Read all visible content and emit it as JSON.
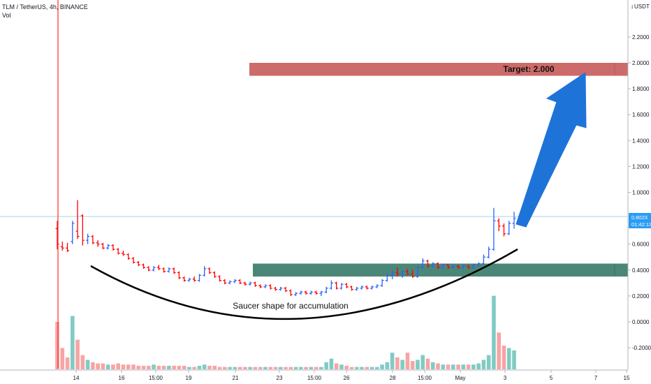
{
  "header": {
    "symbol_line": "TLM / TetherUS, 4h, BINANCE",
    "volume_label": "Vol"
  },
  "price_axis": {
    "currency": "USDT",
    "tick_labels": [
      "2.2000",
      "2.0000",
      "1.8000",
      "1.6000",
      "1.4000",
      "1.2000",
      "1.0000",
      "0.6000",
      "0.4000",
      "0.2000",
      "0.0000",
      "-0.2000"
    ],
    "last_price": "0.8023",
    "countdown": "01:42:13"
  },
  "time_axis": {
    "tick_labels": [
      "14",
      "16",
      "15:00",
      "19",
      "21",
      "23",
      "15:00",
      "26",
      "28",
      "15:00",
      "May",
      "3",
      "5",
      "7",
      "15"
    ]
  },
  "annotations": {
    "target_label": "Target: 2.000",
    "saucer_label": "Saucer shape for accumulation"
  },
  "colors": {
    "up": "#2962ff",
    "down": "#ff0000",
    "vol_up": "#80cbc4",
    "vol_down": "#f7a4a4",
    "target_zone": "#cd6a6a",
    "support_zone": "#4b8776",
    "arrow": "#1e73d8",
    "last_price_line": "#a8d4ef",
    "last_price_label": "#2a9df4"
  },
  "chart_data": {
    "type": "candlestick",
    "title": "TLM / TetherUS, 4h, BINANCE",
    "y_unit": "USDT",
    "price_range": [
      -0.2,
      2.2
    ],
    "last_price": 0.8023,
    "ohlc": [
      [
        0.72,
        0.78,
        0.56,
        0.6
      ],
      [
        0.58,
        0.62,
        0.55,
        0.57
      ],
      [
        0.57,
        0.61,
        0.54,
        0.55
      ],
      [
        0.62,
        0.78,
        0.6,
        0.76
      ],
      [
        0.7,
        0.94,
        0.64,
        0.66
      ],
      [
        0.82,
        0.83,
        0.59,
        0.63
      ],
      [
        0.63,
        0.68,
        0.6,
        0.66
      ],
      [
        0.66,
        0.67,
        0.6,
        0.61
      ],
      [
        0.61,
        0.63,
        0.58,
        0.6
      ],
      [
        0.6,
        0.61,
        0.56,
        0.57
      ],
      [
        0.57,
        0.6,
        0.56,
        0.59
      ],
      [
        0.59,
        0.6,
        0.55,
        0.56
      ],
      [
        0.56,
        0.57,
        0.52,
        0.53
      ],
      [
        0.53,
        0.55,
        0.51,
        0.52
      ],
      [
        0.52,
        0.53,
        0.48,
        0.49
      ],
      [
        0.49,
        0.5,
        0.45,
        0.46
      ],
      [
        0.46,
        0.47,
        0.43,
        0.44
      ],
      [
        0.44,
        0.45,
        0.41,
        0.42
      ],
      [
        0.42,
        0.43,
        0.39,
        0.4
      ],
      [
        0.4,
        0.43,
        0.39,
        0.42
      ],
      [
        0.42,
        0.44,
        0.4,
        0.41
      ],
      [
        0.41,
        0.42,
        0.38,
        0.39
      ],
      [
        0.39,
        0.42,
        0.38,
        0.41
      ],
      [
        0.41,
        0.42,
        0.37,
        0.38
      ],
      [
        0.38,
        0.39,
        0.33,
        0.34
      ],
      [
        0.34,
        0.35,
        0.31,
        0.32
      ],
      [
        0.32,
        0.34,
        0.31,
        0.33
      ],
      [
        0.33,
        0.35,
        0.31,
        0.32
      ],
      [
        0.32,
        0.37,
        0.31,
        0.36
      ],
      [
        0.36,
        0.43,
        0.35,
        0.41
      ],
      [
        0.41,
        0.42,
        0.37,
        0.38
      ],
      [
        0.38,
        0.39,
        0.34,
        0.35
      ],
      [
        0.35,
        0.36,
        0.31,
        0.32
      ],
      [
        0.32,
        0.33,
        0.29,
        0.3
      ],
      [
        0.3,
        0.32,
        0.29,
        0.31
      ],
      [
        0.31,
        0.33,
        0.3,
        0.32
      ],
      [
        0.32,
        0.33,
        0.29,
        0.3
      ],
      [
        0.3,
        0.31,
        0.28,
        0.29
      ],
      [
        0.29,
        0.31,
        0.28,
        0.3
      ],
      [
        0.3,
        0.31,
        0.27,
        0.28
      ],
      [
        0.28,
        0.29,
        0.26,
        0.27
      ],
      [
        0.27,
        0.29,
        0.26,
        0.28
      ],
      [
        0.28,
        0.29,
        0.25,
        0.26
      ],
      [
        0.26,
        0.27,
        0.24,
        0.25
      ],
      [
        0.25,
        0.27,
        0.24,
        0.26
      ],
      [
        0.26,
        0.27,
        0.23,
        0.24
      ],
      [
        0.24,
        0.25,
        0.2,
        0.21
      ],
      [
        0.21,
        0.23,
        0.2,
        0.22
      ],
      [
        0.22,
        0.24,
        0.21,
        0.23
      ],
      [
        0.23,
        0.24,
        0.21,
        0.22
      ],
      [
        0.22,
        0.24,
        0.21,
        0.23
      ],
      [
        0.23,
        0.24,
        0.21,
        0.22
      ],
      [
        0.22,
        0.24,
        0.2,
        0.23
      ],
      [
        0.23,
        0.27,
        0.22,
        0.26
      ],
      [
        0.26,
        0.32,
        0.25,
        0.3
      ],
      [
        0.3,
        0.31,
        0.25,
        0.26
      ],
      [
        0.26,
        0.3,
        0.25,
        0.29
      ],
      [
        0.29,
        0.3,
        0.26,
        0.27
      ],
      [
        0.27,
        0.28,
        0.24,
        0.25
      ],
      [
        0.25,
        0.27,
        0.24,
        0.26
      ],
      [
        0.26,
        0.28,
        0.25,
        0.27
      ],
      [
        0.27,
        0.28,
        0.25,
        0.26
      ],
      [
        0.26,
        0.28,
        0.25,
        0.27
      ],
      [
        0.27,
        0.29,
        0.26,
        0.28
      ],
      [
        0.28,
        0.33,
        0.27,
        0.32
      ],
      [
        0.32,
        0.37,
        0.31,
        0.36
      ],
      [
        0.36,
        0.4,
        0.33,
        0.38
      ],
      [
        0.38,
        0.42,
        0.35,
        0.37
      ],
      [
        0.37,
        0.4,
        0.34,
        0.39
      ],
      [
        0.39,
        0.41,
        0.36,
        0.37
      ],
      [
        0.37,
        0.4,
        0.34,
        0.35
      ],
      [
        0.35,
        0.43,
        0.34,
        0.42
      ],
      [
        0.42,
        0.49,
        0.41,
        0.47
      ],
      [
        0.47,
        0.48,
        0.42,
        0.43
      ],
      [
        0.43,
        0.46,
        0.42,
        0.45
      ],
      [
        0.45,
        0.46,
        0.41,
        0.42
      ],
      [
        0.42,
        0.45,
        0.41,
        0.44
      ],
      [
        0.44,
        0.45,
        0.41,
        0.42
      ],
      [
        0.42,
        0.44,
        0.41,
        0.43
      ],
      [
        0.43,
        0.44,
        0.41,
        0.42
      ],
      [
        0.42,
        0.44,
        0.41,
        0.43
      ],
      [
        0.43,
        0.44,
        0.41,
        0.42
      ],
      [
        0.42,
        0.45,
        0.41,
        0.44
      ],
      [
        0.44,
        0.46,
        0.43,
        0.45
      ],
      [
        0.45,
        0.52,
        0.44,
        0.5
      ],
      [
        0.5,
        0.58,
        0.49,
        0.56
      ],
      [
        0.56,
        0.88,
        0.55,
        0.78
      ],
      [
        0.78,
        0.8,
        0.7,
        0.74
      ],
      [
        0.74,
        0.76,
        0.66,
        0.68
      ],
      [
        0.68,
        0.78,
        0.67,
        0.76
      ],
      [
        0.76,
        0.85,
        0.72,
        0.8
      ]
    ],
    "volume_relative": [
      0.4,
      0.18,
      0.1,
      0.45,
      0.25,
      0.12,
      0.08,
      0.06,
      0.05,
      0.05,
      0.04,
      0.04,
      0.05,
      0.04,
      0.04,
      0.04,
      0.03,
      0.03,
      0.03,
      0.04,
      0.03,
      0.03,
      0.03,
      0.03,
      0.03,
      0.03,
      0.02,
      0.02,
      0.03,
      0.04,
      0.03,
      0.03,
      0.02,
      0.02,
      0.02,
      0.02,
      0.02,
      0.02,
      0.02,
      0.02,
      0.02,
      0.02,
      0.02,
      0.02,
      0.02,
      0.02,
      0.02,
      0.02,
      0.02,
      0.02,
      0.02,
      0.02,
      0.02,
      0.06,
      0.09,
      0.05,
      0.04,
      0.03,
      0.02,
      0.02,
      0.02,
      0.02,
      0.02,
      0.02,
      0.04,
      0.06,
      0.14,
      0.1,
      0.08,
      0.14,
      0.07,
      0.08,
      0.12,
      0.09,
      0.06,
      0.05,
      0.04,
      0.04,
      0.04,
      0.04,
      0.04,
      0.04,
      0.04,
      0.05,
      0.08,
      0.12,
      0.62,
      0.31,
      0.2,
      0.18,
      0.16
    ],
    "zones": {
      "target": [
        1.9,
        2.0
      ],
      "support": [
        0.35,
        0.45
      ]
    },
    "target_value": 2.0,
    "xlabel": "",
    "ylabel": "",
    "grid": false,
    "legend": "top-left"
  }
}
